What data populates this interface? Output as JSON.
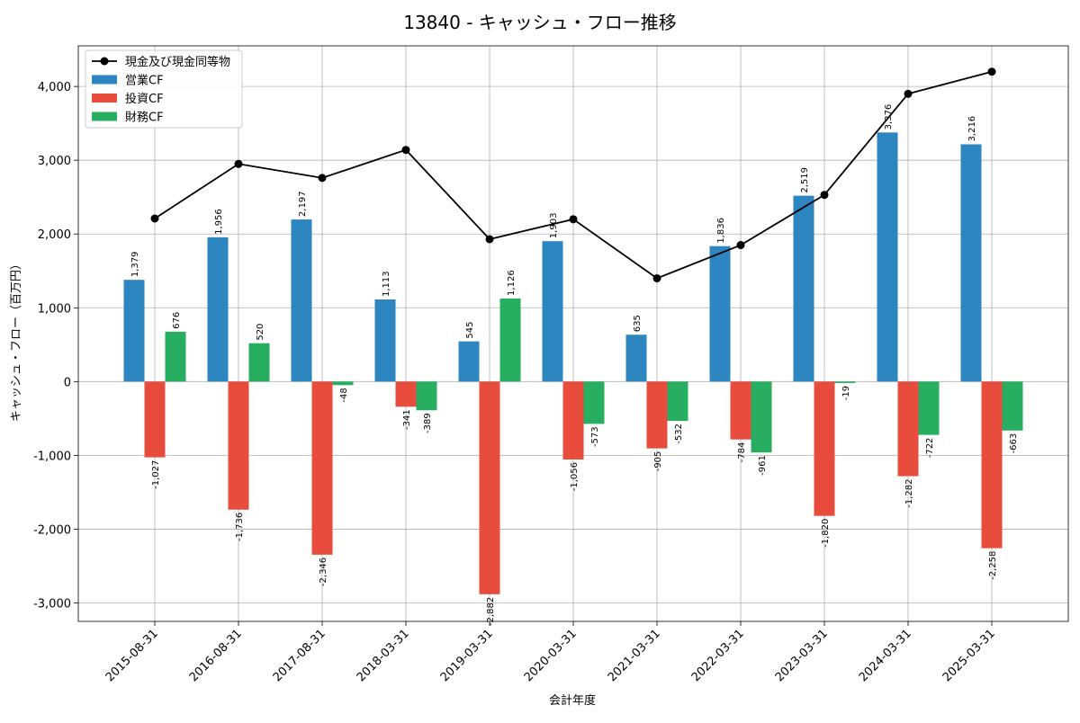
{
  "chart_data": {
    "type": "bar",
    "title": "13840 - キャッシュ・フロー推移",
    "xlabel": "会計年度",
    "ylabel": "キャッシュ・フロー（百万円）",
    "categories": [
      "2015-08-31",
      "2016-08-31",
      "2017-08-31",
      "2018-03-31",
      "2019-03-31",
      "2020-03-31",
      "2021-03-31",
      "2022-03-31",
      "2023-03-31",
      "2024-03-31",
      "2025-03-31"
    ],
    "ylim": [
      -3250,
      4550
    ],
    "yticks": [
      -3000,
      -2000,
      -1000,
      0,
      1000,
      2000,
      3000,
      4000
    ],
    "ytick_labels": [
      "-3,000",
      "-2,000",
      "-1,000",
      "0",
      "1,000",
      "2,000",
      "3,000",
      "4,000"
    ],
    "grid": true,
    "legend_position": "top-left",
    "series": [
      {
        "name": "営業CF",
        "type": "bar",
        "color": "#2e86c1",
        "values": [
          1379,
          1956,
          2197,
          1113,
          545,
          1903,
          635,
          1836,
          2519,
          3376,
          3216
        ],
        "labels": [
          "1,379",
          "1,956",
          "2,197",
          "1,113",
          "545",
          "1,903",
          "635",
          "1,836",
          "2,519",
          "3,376",
          "3,216"
        ]
      },
      {
        "name": "投資CF",
        "type": "bar",
        "color": "#e74c3c",
        "values": [
          -1027,
          -1736,
          -2346,
          -341,
          -2882,
          -1056,
          -905,
          -784,
          -1820,
          -1282,
          -2258
        ],
        "labels": [
          "-1,027",
          "-1,736",
          "-2,346",
          "-341",
          "-2,882",
          "-1,056",
          "-905",
          "-784",
          "-1,820",
          "-1,282",
          "-2,258"
        ]
      },
      {
        "name": "財務CF",
        "type": "bar",
        "color": "#27ae60",
        "values": [
          676,
          520,
          -48,
          -389,
          1126,
          -573,
          -532,
          -961,
          -19,
          -722,
          -663
        ],
        "labels": [
          "676",
          "520",
          "-48",
          "-389",
          "1,126",
          "-573",
          "-532",
          "-961",
          "-19",
          "-722",
          "-663"
        ]
      },
      {
        "name": "現金及び現金同等物",
        "type": "line",
        "color": "#000000",
        "values": [
          2210,
          2950,
          2760,
          3140,
          1930,
          2200,
          1400,
          1850,
          2530,
          3900,
          4200
        ]
      }
    ]
  }
}
